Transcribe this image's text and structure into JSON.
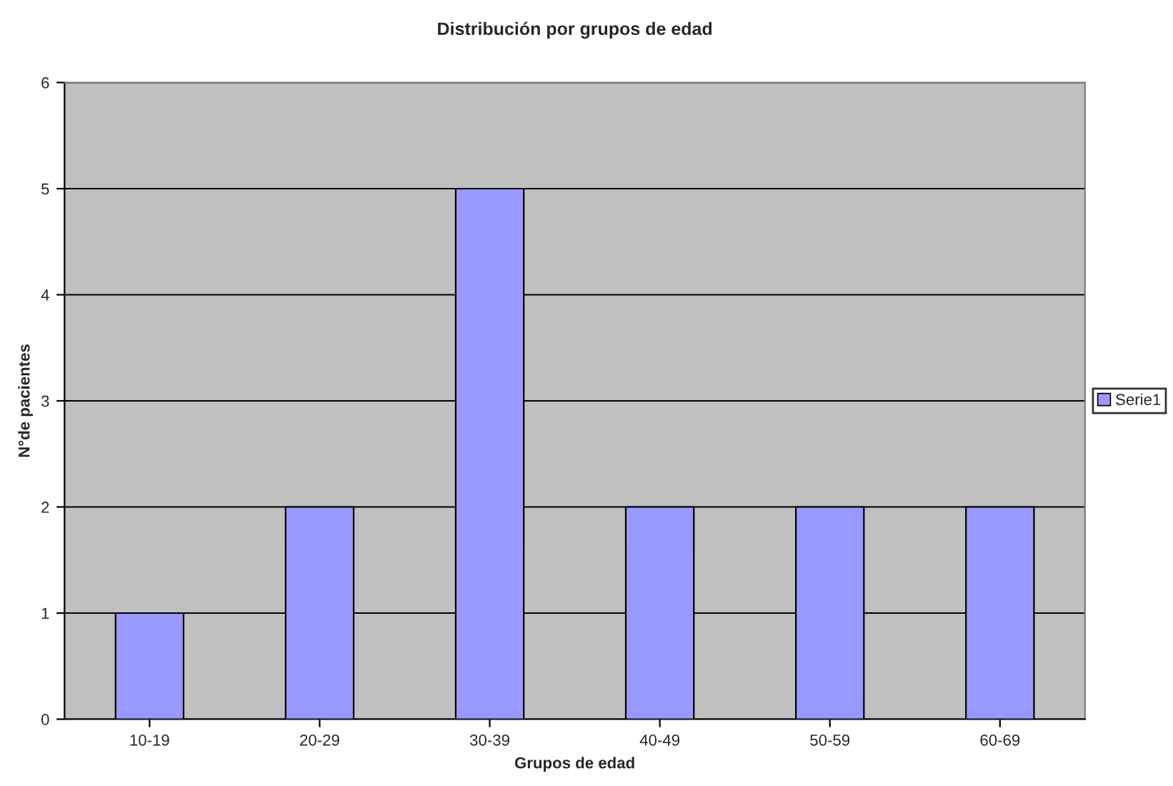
{
  "chart_data": {
    "type": "bar",
    "title": "Distribución por grupos de edad",
    "xlabel": "Grupos de edad",
    "ylabel": "N°de pacientes",
    "categories": [
      "10-19",
      "20-29",
      "30-39",
      "40-49",
      "50-59",
      "60-69"
    ],
    "series": [
      {
        "name": "Serie1",
        "color": "#9999ff",
        "values": [
          1,
          2,
          5,
          2,
          2,
          2
        ]
      }
    ],
    "ylim": [
      0,
      6
    ],
    "yticks": [
      0,
      1,
      2,
      3,
      4,
      5,
      6
    ],
    "grid": "y",
    "legend": "right"
  }
}
